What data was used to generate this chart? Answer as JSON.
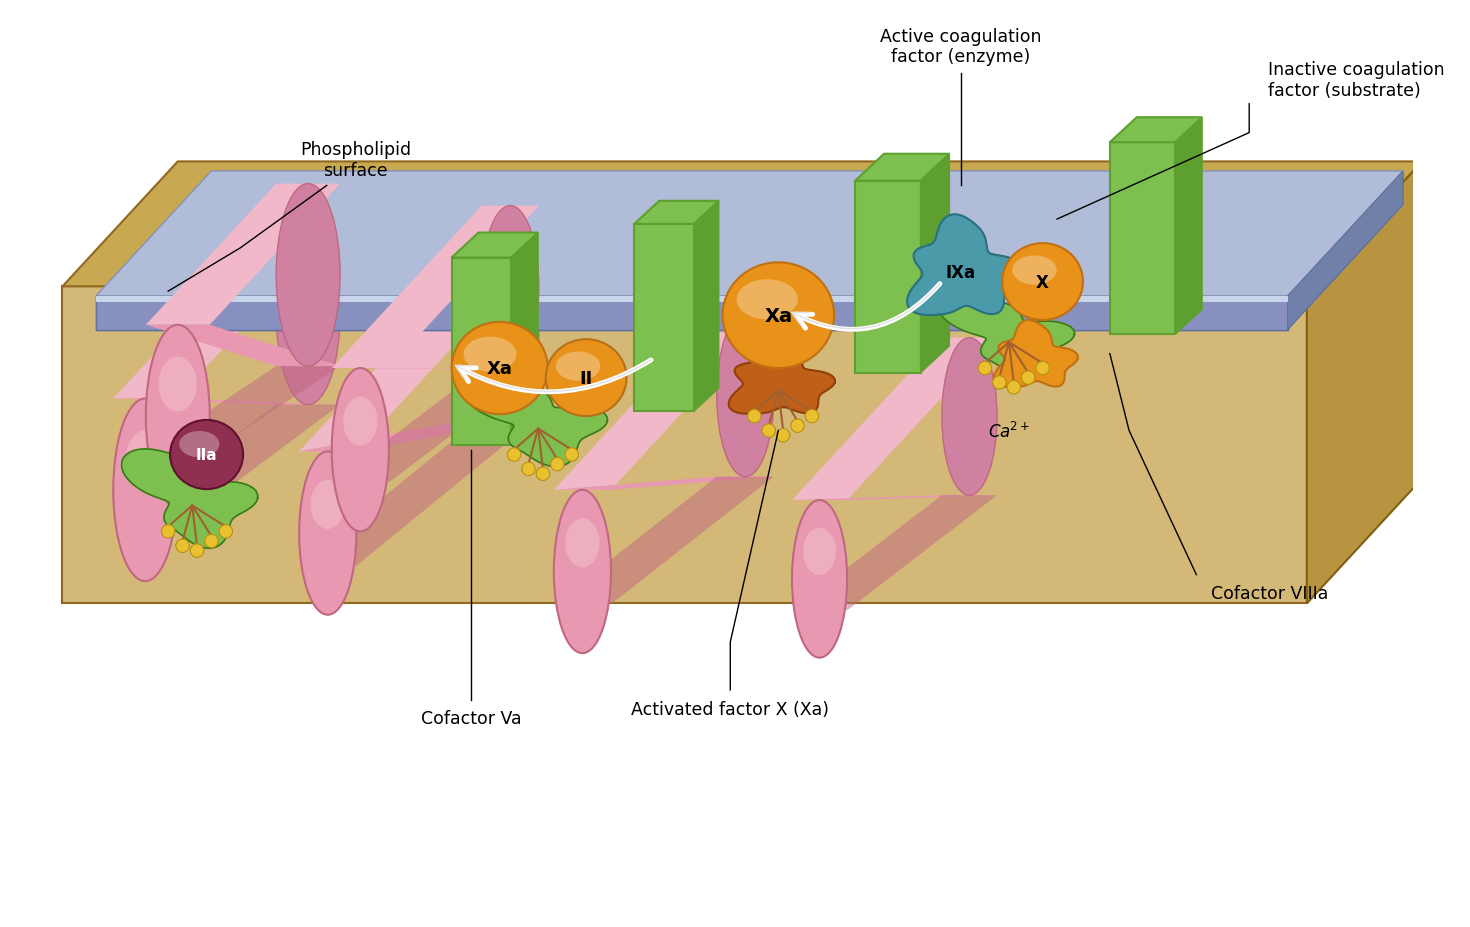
{
  "bg_color": "#ffffff",
  "platform_front_color": "#d4b878",
  "platform_top_color": "#c8a850",
  "platform_right_color": "#b89440",
  "membrane_front_color": "#8890c0",
  "membrane_top_color": "#b0bcd8",
  "membrane_right_color": "#7080a8",
  "membrane_highlight_color": "#c8d4ec",
  "cylinder_main": "#e898b0",
  "cylinder_light": "#f0b8c8",
  "cylinder_dark": "#c06880",
  "cylinder_end": "#d080a0",
  "green_light": "#7ec050",
  "green_mid": "#5ea030",
  "green_dark": "#3a7818",
  "orange_main": "#e8921a",
  "orange_dark": "#c07010",
  "orange_light": "#f0a840",
  "teal_main": "#4a9aaa",
  "teal_dark": "#2a7080",
  "teal_light": "#6ab8c8",
  "darkred_main": "#903050",
  "darkred_dark": "#601030",
  "gold_sphere": "#e8c030",
  "gold_dark": "#b89010",
  "stalk_color": "#a06030",
  "black": "#000000",
  "white": "#ffffff",
  "labels": {
    "active_coag": "Active coagulation\nfactor (enzyme)",
    "inactive_coag": "Inactive coagulation\nfactor (substrate)",
    "phospholipid": "Phospholipid\nsurface",
    "cofactor_VIIIa": "Cofactor VIIIa",
    "cofactor_Va": "Cofactor Va",
    "activated_Xa": "Activated factor X (Xa)",
    "IXa": "IXa",
    "Xa": "Xa",
    "X": "X",
    "II": "II",
    "IIa": "IIa"
  }
}
